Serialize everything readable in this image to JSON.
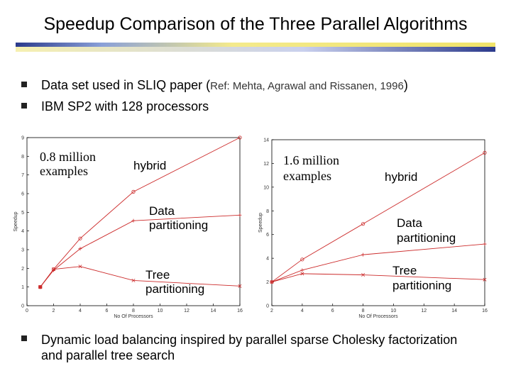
{
  "slide": {
    "title": "Speedup Comparison of the Three Parallel Algorithms",
    "bullets": [
      {
        "text": "Data set used in SLIQ paper (",
        "ref": "Ref: Mehta, Agrawal and Rissanen, 1996",
        "close": ")"
      },
      {
        "text": "IBM SP2 with 128 processors"
      }
    ],
    "footer_bullet": "Dynamic load balancing inspired by parallel sparse Cholesky factorization and parallel tree search",
    "colors": {
      "series": "#cc2b2b",
      "rule_dark": "#2b3a8c",
      "rule_light": "#f0e36a",
      "bullet": "#222222"
    }
  },
  "chart_data": [
    {
      "type": "line",
      "xlabel": "No Of Processors",
      "ylabel": "Speedup",
      "xlim": [
        0,
        16
      ],
      "ylim": [
        0,
        9
      ],
      "xticks": [
        0,
        2,
        4,
        6,
        8,
        10,
        12,
        14,
        16
      ],
      "yticks": [
        0,
        1,
        2,
        3,
        4,
        5,
        6,
        7,
        8,
        9
      ],
      "annotations": {
        "dataset": "0.8 million examples",
        "hybrid": "hybrid",
        "data": "Data partitioning",
        "tree": "Tree partitioning"
      },
      "series": [
        {
          "name": "hybrid",
          "marker": "o",
          "x": [
            1,
            2,
            4,
            8,
            16
          ],
          "y": [
            1.0,
            1.95,
            3.6,
            6.1,
            9.0
          ]
        },
        {
          "name": "Data partitioning",
          "marker": "+",
          "x": [
            1,
            2,
            4,
            8,
            16
          ],
          "y": [
            1.0,
            1.9,
            3.05,
            4.55,
            4.85
          ]
        },
        {
          "name": "Tree partitioning",
          "marker": "x",
          "x": [
            1,
            2,
            4,
            8,
            16
          ],
          "y": [
            1.0,
            1.95,
            2.1,
            1.35,
            1.05
          ]
        }
      ]
    },
    {
      "type": "line",
      "xlabel": "No Of Processors",
      "ylabel": "Speedup",
      "xlim": [
        2,
        16
      ],
      "ylim": [
        0,
        14
      ],
      "xticks": [
        2,
        4,
        6,
        8,
        10,
        12,
        14,
        16
      ],
      "yticks": [
        0,
        2,
        4,
        6,
        8,
        10,
        12,
        14
      ],
      "annotations": {
        "dataset": "1.6 million examples",
        "hybrid": "hybrid",
        "data": "Data partitioning",
        "tree": "Tree partitioning"
      },
      "series": [
        {
          "name": "hybrid",
          "marker": "o",
          "x": [
            2,
            4,
            8,
            16
          ],
          "y": [
            2.0,
            3.9,
            6.9,
            12.9
          ]
        },
        {
          "name": "Data partitioning",
          "marker": "+",
          "x": [
            2,
            4,
            8,
            16
          ],
          "y": [
            2.0,
            3.0,
            4.3,
            5.2
          ]
        },
        {
          "name": "Tree partitioning",
          "marker": "x",
          "x": [
            2,
            4,
            8,
            16
          ],
          "y": [
            2.0,
            2.7,
            2.6,
            2.2
          ]
        }
      ]
    }
  ]
}
